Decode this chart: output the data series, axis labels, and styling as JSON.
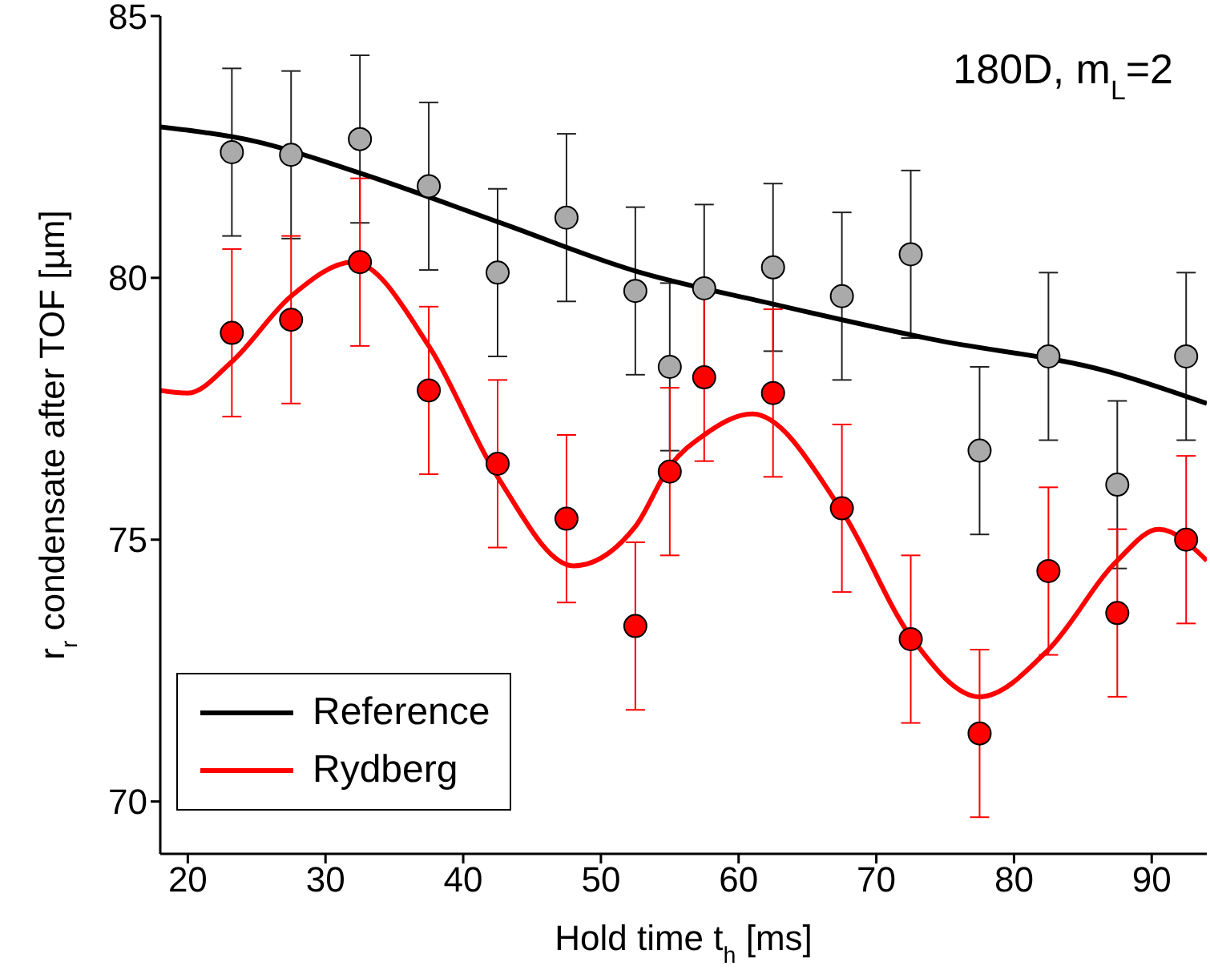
{
  "chart_data": {
    "type": "scatter",
    "xlabel": "Hold time t$_{h}$ [ms]",
    "ylabel": "r$_{r}$ condensate after TOF [µm]",
    "annotations": [
      "180D, m$_{L}$=2"
    ],
    "xlim": [
      18,
      94
    ],
    "xticks": [
      20,
      30,
      40,
      50,
      60,
      70,
      80,
      90
    ],
    "ylim": [
      69,
      85
    ],
    "yticks": [
      70,
      75,
      80,
      85
    ],
    "grid": false,
    "legend": "bottom left",
    "series": [
      {
        "type": "scatter",
        "marker": "circle",
        "color": "#aaaaaa",
        "x": [
          23.2,
          27.5,
          32.5,
          37.5,
          42.5,
          47.5,
          52.5,
          55,
          57.5,
          62.5,
          67.5,
          72.5,
          77.5,
          82.5,
          87.5,
          92.5
        ],
        "values": [
          82.4,
          82.35,
          82.65,
          81.75,
          80.1,
          81.15,
          79.75,
          78.3,
          79.8,
          80.2,
          79.65,
          80.45,
          76.7,
          78.5,
          76.05,
          78.5
        ],
        "errors": [
          1.6,
          1.6,
          1.6,
          1.6,
          1.6,
          1.6,
          1.6,
          1.6,
          1.6,
          1.6,
          1.6,
          1.6,
          1.6,
          1.6,
          1.6,
          1.6
        ]
      },
      {
        "type": "scatter",
        "marker": "circle",
        "color": "#ff0000",
        "x": [
          23.2,
          27.5,
          32.5,
          37.5,
          42.5,
          47.5,
          52.5,
          55,
          57.5,
          62.5,
          67.5,
          72.5,
          77.5,
          82.5,
          87.5,
          92.5
        ],
        "values": [
          78.95,
          79.2,
          80.3,
          77.85,
          76.45,
          75.4,
          73.35,
          76.3,
          78.1,
          77.8,
          75.6,
          73.1,
          71.3,
          74.4,
          73.6,
          75.0
        ],
        "errors": [
          1.6,
          1.6,
          1.6,
          1.6,
          1.6,
          1.6,
          1.6,
          1.6,
          1.6,
          1.6,
          1.6,
          1.6,
          1.6,
          1.6,
          1.6,
          1.6
        ]
      },
      {
        "type": "line",
        "name": "Reference",
        "marker": "none",
        "color": "#000000",
        "x": [
          18,
          25,
          32.5,
          42.5,
          52.5,
          62.5,
          74,
          87,
          94
        ],
        "values": [
          82.88,
          82.6,
          82.0,
          81.07,
          80.13,
          79.5,
          78.83,
          78.2,
          77.6
        ]
      },
      {
        "type": "line",
        "name": "Rydberg",
        "marker": "none",
        "color": "#ff0000",
        "x": [
          18,
          20,
          23.2,
          27.5,
          32,
          37.5,
          42.5,
          48,
          52.5,
          55,
          57.5,
          61,
          67.5,
          72.5,
          77.5,
          82.5,
          87.5,
          90.5,
          94
        ],
        "values": [
          77.85,
          77.8,
          78.4,
          79.65,
          80.3,
          78.7,
          76.2,
          74.5,
          75.25,
          76.4,
          77.0,
          77.4,
          75.55,
          73.15,
          72.0,
          72.9,
          74.6,
          75.2,
          74.6
        ]
      }
    ]
  }
}
